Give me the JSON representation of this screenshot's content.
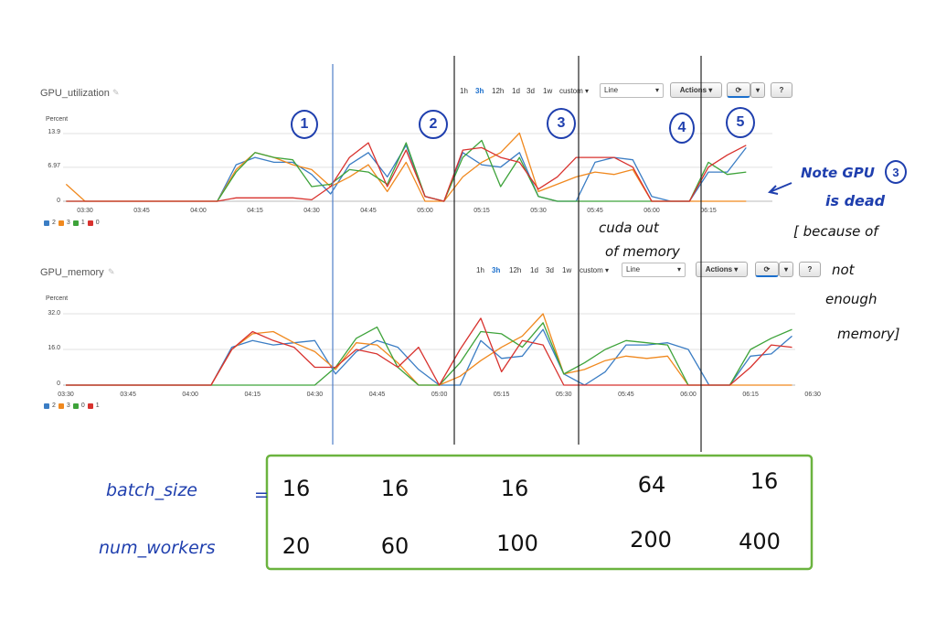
{
  "chart_data": [
    {
      "type": "line",
      "title": "GPU_utilization",
      "ylabel": "Percent",
      "ylim": [
        0,
        13.9
      ],
      "yticks": [
        "13.9",
        "6.97",
        "0"
      ],
      "xticks": [
        "03:30",
        "03:45",
        "04:00",
        "04:15",
        "04:30",
        "04:45",
        "05:00",
        "05:15",
        "05:30",
        "05:45",
        "06:00",
        "06:15"
      ],
      "grid": "horizontal",
      "legend_position": "bottom-left",
      "legend": [
        "2",
        "3",
        "1",
        "0"
      ],
      "series": [
        {
          "name": "2",
          "color": "#3b7dc4",
          "points": [
            [
              "04:05",
              0
            ],
            [
              "04:10",
              7.5
            ],
            [
              "04:15",
              9
            ],
            [
              "04:20",
              8
            ],
            [
              "04:25",
              8
            ],
            [
              "04:30",
              5.5
            ],
            [
              "04:35",
              1.5
            ],
            [
              "04:40",
              7.5
            ],
            [
              "04:45",
              10
            ],
            [
              "04:50",
              5
            ],
            [
              "04:55",
              11.5
            ],
            [
              "05:00",
              1
            ],
            [
              "05:05",
              0
            ],
            [
              "05:10",
              10
            ],
            [
              "05:15",
              7.5
            ],
            [
              "05:20",
              7
            ],
            [
              "05:25",
              10
            ],
            [
              "05:30",
              1
            ],
            [
              "05:35",
              0
            ],
            [
              "05:40",
              0
            ],
            [
              "05:45",
              8
            ],
            [
              "05:50",
              9
            ],
            [
              "05:55",
              8.5
            ],
            [
              "06:00",
              1
            ],
            [
              "06:05",
              0
            ],
            [
              "06:10",
              0
            ],
            [
              "06:15",
              6
            ],
            [
              "06:20",
              6
            ],
            [
              "06:25",
              11
            ]
          ]
        },
        {
          "name": "3",
          "color": "#f0891f",
          "points": [
            [
              "03:25",
              3.5
            ],
            [
              "03:30",
              0
            ],
            [
              "04:05",
              0
            ],
            [
              "04:10",
              6.5
            ],
            [
              "04:15",
              10
            ],
            [
              "04:20",
              9
            ],
            [
              "04:25",
              7.5
            ],
            [
              "04:30",
              6.5
            ],
            [
              "04:35",
              3
            ],
            [
              "04:40",
              5
            ],
            [
              "04:45",
              7.5
            ],
            [
              "04:50",
              2
            ],
            [
              "04:55",
              8
            ],
            [
              "05:00",
              0
            ],
            [
              "05:05",
              0
            ],
            [
              "05:10",
              5
            ],
            [
              "05:15",
              8
            ],
            [
              "05:20",
              10
            ],
            [
              "05:25",
              14
            ],
            [
              "05:30",
              2
            ],
            [
              "05:35",
              3.5
            ],
            [
              "05:40",
              5
            ],
            [
              "05:45",
              6
            ],
            [
              "05:50",
              5.5
            ],
            [
              "05:55",
              6.5
            ],
            [
              "06:00",
              0
            ],
            [
              "06:05",
              0
            ],
            [
              "06:10",
              0
            ],
            [
              "06:15",
              0
            ],
            [
              "06:20",
              0
            ],
            [
              "06:25",
              0
            ]
          ]
        },
        {
          "name": "1",
          "color": "#3ea33a",
          "points": [
            [
              "03:25",
              0
            ],
            [
              "04:05",
              0
            ],
            [
              "04:10",
              6
            ],
            [
              "04:15",
              10
            ],
            [
              "04:20",
              9
            ],
            [
              "04:25",
              8.5
            ],
            [
              "04:30",
              3
            ],
            [
              "04:35",
              3.5
            ],
            [
              "04:40",
              6.5
            ],
            [
              "04:45",
              6
            ],
            [
              "04:50",
              3.5
            ],
            [
              "04:55",
              12
            ],
            [
              "05:00",
              1
            ],
            [
              "05:05",
              0
            ],
            [
              "05:10",
              9
            ],
            [
              "05:15",
              12.5
            ],
            [
              "05:20",
              3
            ],
            [
              "05:25",
              9
            ],
            [
              "05:30",
              1
            ],
            [
              "05:35",
              0
            ],
            [
              "05:40",
              0
            ],
            [
              "05:45",
              0
            ],
            [
              "05:50",
              0
            ],
            [
              "05:55",
              0
            ],
            [
              "06:00",
              0
            ],
            [
              "06:05",
              0
            ],
            [
              "06:10",
              0
            ],
            [
              "06:15",
              8
            ],
            [
              "06:20",
              5.5
            ],
            [
              "06:25",
              6
            ]
          ]
        },
        {
          "name": "0",
          "color": "#d8322e",
          "points": [
            [
              "03:25",
              0
            ],
            [
              "04:05",
              0
            ],
            [
              "04:10",
              0.7
            ],
            [
              "04:15",
              0.7
            ],
            [
              "04:20",
              0.7
            ],
            [
              "04:25",
              0.7
            ],
            [
              "04:30",
              0.3
            ],
            [
              "04:35",
              3
            ],
            [
              "04:40",
              9
            ],
            [
              "04:45",
              12
            ],
            [
              "04:50",
              3
            ],
            [
              "04:55",
              10.5
            ],
            [
              "05:00",
              1
            ],
            [
              "05:05",
              0
            ],
            [
              "05:10",
              10.5
            ],
            [
              "05:15",
              11
            ],
            [
              "05:20",
              9
            ],
            [
              "05:25",
              8
            ],
            [
              "05:30",
              2.5
            ],
            [
              "05:35",
              5
            ],
            [
              "05:40",
              9
            ],
            [
              "05:45",
              9
            ],
            [
              "05:50",
              9
            ],
            [
              "05:55",
              7
            ],
            [
              "06:00",
              0
            ],
            [
              "06:05",
              0
            ],
            [
              "06:10",
              0
            ],
            [
              "06:15",
              7
            ],
            [
              "06:20",
              9.5
            ],
            [
              "06:25",
              11.5
            ]
          ]
        }
      ]
    },
    {
      "type": "line",
      "title": "GPU_memory",
      "ylabel": "Percent",
      "ylim": [
        0,
        32
      ],
      "yticks": [
        "32.0",
        "16.0",
        "0"
      ],
      "xticks": [
        "03:30",
        "03:45",
        "04:00",
        "04:15",
        "04:30",
        "04:45",
        "05:00",
        "05:15",
        "05:30",
        "05:45",
        "06:00",
        "06:15",
        "06:30"
      ],
      "grid": "horizontal",
      "legend_position": "bottom-left",
      "legend": [
        "2",
        "3",
        "0",
        "1"
      ],
      "series": [
        {
          "name": "2",
          "color": "#3b7dc4",
          "points": [
            [
              "03:30",
              0
            ],
            [
              "04:05",
              0
            ],
            [
              "04:10",
              17
            ],
            [
              "04:15",
              20
            ],
            [
              "04:20",
              18
            ],
            [
              "04:25",
              19
            ],
            [
              "04:30",
              20
            ],
            [
              "04:35",
              5
            ],
            [
              "04:40",
              15
            ],
            [
              "04:45",
              20
            ],
            [
              "04:50",
              17
            ],
            [
              "04:55",
              7
            ],
            [
              "05:00",
              0
            ],
            [
              "05:05",
              0
            ],
            [
              "05:10",
              20
            ],
            [
              "05:15",
              12
            ],
            [
              "05:20",
              13
            ],
            [
              "05:25",
              25
            ],
            [
              "05:30",
              5
            ],
            [
              "05:35",
              0
            ],
            [
              "05:40",
              6
            ],
            [
              "05:45",
              18
            ],
            [
              "05:50",
              18
            ],
            [
              "05:55",
              19
            ],
            [
              "06:00",
              16
            ],
            [
              "06:05",
              0
            ],
            [
              "06:10",
              0
            ],
            [
              "06:15",
              13
            ],
            [
              "06:20",
              14
            ],
            [
              "06:25",
              22
            ]
          ]
        },
        {
          "name": "3",
          "color": "#f0891f",
          "points": [
            [
              "03:30",
              0
            ],
            [
              "04:05",
              0
            ],
            [
              "04:10",
              16
            ],
            [
              "04:15",
              23
            ],
            [
              "04:20",
              24
            ],
            [
              "04:25",
              19
            ],
            [
              "04:30",
              15
            ],
            [
              "04:35",
              7
            ],
            [
              "04:40",
              19
            ],
            [
              "04:45",
              18
            ],
            [
              "04:50",
              10
            ],
            [
              "04:55",
              0
            ],
            [
              "05:00",
              0
            ],
            [
              "05:05",
              4
            ],
            [
              "05:10",
              11
            ],
            [
              "05:15",
              17
            ],
            [
              "05:20",
              22
            ],
            [
              "05:25",
              32
            ],
            [
              "05:30",
              5
            ],
            [
              "05:35",
              7
            ],
            [
              "05:40",
              11
            ],
            [
              "05:45",
              13
            ],
            [
              "05:50",
              12
            ],
            [
              "05:55",
              13
            ],
            [
              "06:00",
              0
            ],
            [
              "06:05",
              0
            ],
            [
              "06:10",
              0
            ],
            [
              "06:15",
              0
            ],
            [
              "06:20",
              0
            ],
            [
              "06:25",
              0
            ]
          ]
        },
        {
          "name": "0",
          "color": "#3ea33a",
          "points": [
            [
              "03:30",
              0
            ],
            [
              "04:20",
              0
            ],
            [
              "04:25",
              0
            ],
            [
              "04:30",
              0
            ],
            [
              "04:35",
              8
            ],
            [
              "04:40",
              21
            ],
            [
              "04:45",
              26
            ],
            [
              "04:50",
              8
            ],
            [
              "04:55",
              0
            ],
            [
              "05:00",
              0
            ],
            [
              "05:05",
              10
            ],
            [
              "05:10",
              24
            ],
            [
              "05:15",
              23
            ],
            [
              "05:20",
              17
            ],
            [
              "05:25",
              28
            ],
            [
              "05:30",
              5
            ],
            [
              "05:35",
              10
            ],
            [
              "05:40",
              16
            ],
            [
              "05:45",
              20
            ],
            [
              "05:50",
              19
            ],
            [
              "05:55",
              18
            ],
            [
              "06:00",
              0
            ],
            [
              "06:05",
              0
            ],
            [
              "06:10",
              0
            ],
            [
              "06:15",
              16
            ],
            [
              "06:20",
              21
            ],
            [
              "06:25",
              25
            ]
          ]
        },
        {
          "name": "1",
          "color": "#d8322e",
          "points": [
            [
              "03:30",
              0
            ],
            [
              "04:05",
              0
            ],
            [
              "04:10",
              16
            ],
            [
              "04:15",
              24
            ],
            [
              "04:20",
              20
            ],
            [
              "04:25",
              17
            ],
            [
              "04:30",
              8
            ],
            [
              "04:35",
              8
            ],
            [
              "04:40",
              16
            ],
            [
              "04:45",
              14
            ],
            [
              "04:50",
              8
            ],
            [
              "04:55",
              17
            ],
            [
              "05:00",
              0
            ],
            [
              "05:05",
              16
            ],
            [
              "05:10",
              30
            ],
            [
              "05:15",
              6
            ],
            [
              "05:20",
              20
            ],
            [
              "05:25",
              18
            ],
            [
              "05:30",
              0
            ],
            [
              "05:35",
              0
            ],
            [
              "05:40",
              0
            ],
            [
              "05:45",
              0
            ],
            [
              "05:50",
              0
            ],
            [
              "05:55",
              0
            ],
            [
              "06:00",
              0
            ],
            [
              "06:05",
              0
            ],
            [
              "06:10",
              0
            ],
            [
              "06:15",
              8
            ],
            [
              "06:20",
              18
            ],
            [
              "06:25",
              17
            ]
          ]
        }
      ]
    }
  ],
  "controls": {
    "time_ranges": [
      "1h",
      "3h",
      "12h",
      "1d",
      "3d",
      "1w",
      "custom"
    ],
    "active_range": "3h",
    "chart_type_value": "Line",
    "actions_label": "Actions",
    "refresh_icon": "refresh-icon",
    "help_label": "?"
  },
  "annotations": {
    "phase_numbers": [
      "1",
      "2",
      "3",
      "4",
      "5"
    ],
    "note_line1": "Note GPU",
    "note_gpu_number": "3",
    "note_line2": "is dead",
    "bracket_lines": [
      "[ because of",
      "not",
      "enough",
      "memory]"
    ],
    "cuda_lines": [
      "cuda out",
      "of memory"
    ]
  },
  "table": {
    "row_labels": [
      "batch_size",
      "num_workers"
    ],
    "equals": "=",
    "batch_size": [
      "16",
      "16",
      "16",
      "64",
      "16"
    ],
    "num_workers": [
      "20",
      "60",
      "100",
      "200",
      "400"
    ]
  },
  "colors": {
    "annotation_blue": "#1f3fae",
    "box_green": "#6bb33f",
    "ink_black": "#111111"
  }
}
